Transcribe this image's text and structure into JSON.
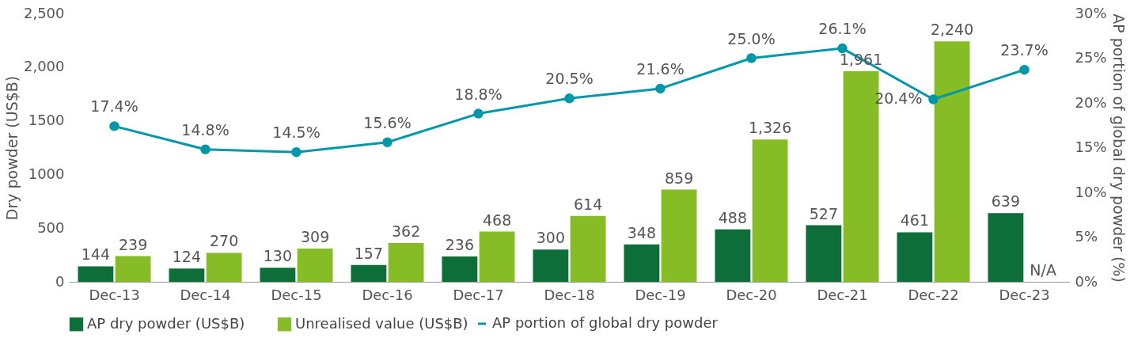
{
  "chart_data": {
    "type": "bar",
    "ylabel": "Dry powder (US$B)",
    "y2label": "AP portion of global dry powder (%)",
    "categories": [
      "Dec-13",
      "Dec-14",
      "Dec-15",
      "Dec-16",
      "Dec-17",
      "Dec-18",
      "Dec-19",
      "Dec-20",
      "Dec-21",
      "Dec-22",
      "Dec-23"
    ],
    "series": [
      {
        "name": "AP dry powder (US$B)",
        "color": "#0e6e3a",
        "values": [
          144,
          124,
          130,
          157,
          236,
          300,
          348,
          488,
          527,
          461,
          639
        ],
        "value_labels": [
          "144",
          "124",
          "130",
          "157",
          "236",
          "300",
          "348",
          "488",
          "527",
          "461",
          "639"
        ]
      },
      {
        "name": "Unrealised value (US$B)",
        "color": "#86bc25",
        "values": [
          239,
          270,
          309,
          362,
          468,
          614,
          859,
          1326,
          1961,
          2240,
          null
        ],
        "value_labels": [
          "239",
          "270",
          "309",
          "362",
          "468",
          "614",
          "859",
          "1,326",
          "1,961",
          "2,240",
          "N/A"
        ]
      },
      {
        "name": "AP portion of global dry powder",
        "type": "line",
        "axis": "y2",
        "color": "#0097a9",
        "values": [
          17.4,
          14.8,
          14.5,
          15.6,
          18.8,
          20.5,
          21.6,
          25.0,
          26.1,
          20.4,
          23.7
        ],
        "value_labels": [
          "17.4%",
          "14.8%",
          "14.5%",
          "15.6%",
          "18.8%",
          "20.5%",
          "21.6%",
          "25.0%",
          "26.1%",
          "20.4%",
          "23.7%"
        ]
      }
    ],
    "ylim": [
      0,
      2500
    ],
    "yticks": [
      0,
      500,
      1000,
      1500,
      {
        "value": 2000,
        "label": "2,000"
      },
      {
        "value": 2500,
        "label": "2,500"
      }
    ],
    "y2lim": [
      0,
      30
    ],
    "y2ticks": [
      {
        "value": 0,
        "label": "0%"
      },
      {
        "value": 5,
        "label": "5%"
      },
      {
        "value": 10,
        "label": "10%"
      },
      {
        "value": 15,
        "label": "15%"
      },
      {
        "value": 20,
        "label": "20%"
      },
      {
        "value": 25,
        "label": "25%"
      },
      {
        "value": 30,
        "label": "30%"
      }
    ],
    "legend": "bottom",
    "grid": false,
    "marker": "circle"
  }
}
